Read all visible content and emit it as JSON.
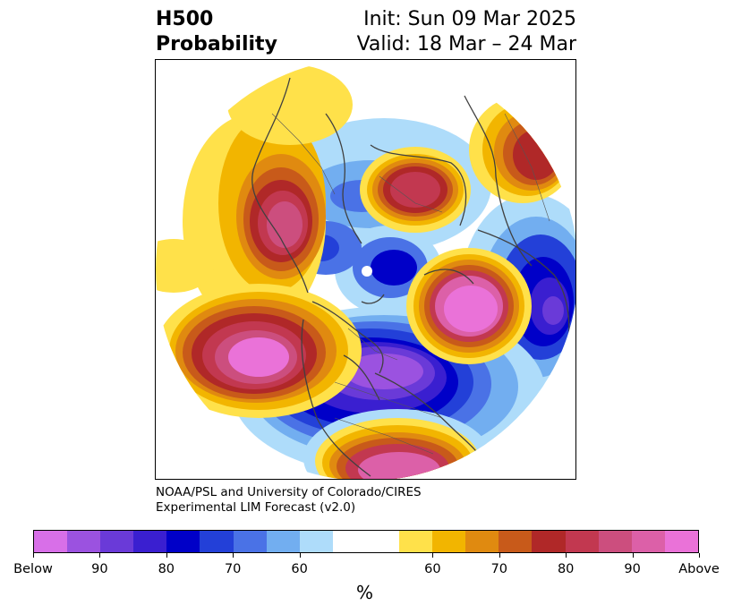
{
  "header": {
    "title_line1": "H500",
    "title_line2": "Probability",
    "init_text": "Init: Sun 09 Mar 2025",
    "valid_text": "Valid: 18 Mar – 24 Mar"
  },
  "credit": {
    "line1": "NOAA/PSL and University of Colorado/CIRES",
    "line2": "Experimental LIM Forecast (v2.0)"
  },
  "colorbar": {
    "colors": [
      "#d86fe8",
      "#9b52e0",
      "#6a3ad8",
      "#3a1fd0",
      "#0000c8",
      "#2340d8",
      "#4a72e6",
      "#72aef0",
      "#aedcfa",
      "#ffffff",
      "#ffffff",
      "#ffe14a",
      "#f2b500",
      "#e08a10",
      "#c85a1a",
      "#b02828",
      "#c23850",
      "#cc4e7e",
      "#dc60a8",
      "#ea72d8"
    ],
    "ticks": [
      "Below",
      "90",
      "80",
      "70",
      "60",
      "60",
      "70",
      "80",
      "90",
      "Above"
    ],
    "unit_label": "%"
  },
  "map": {
    "projection": "polar-stereographic",
    "background": "#ffffff",
    "coastline_color": "#404040"
  }
}
